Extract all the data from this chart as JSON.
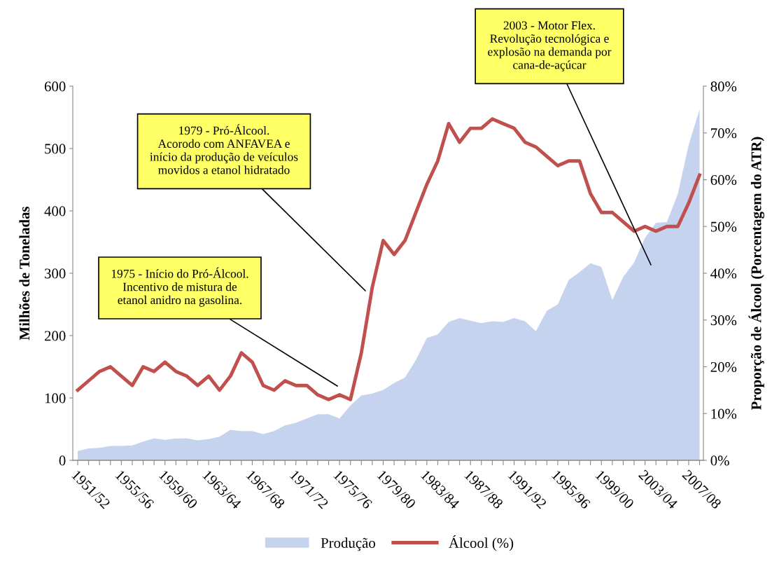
{
  "chart_data": {
    "type": "area",
    "categories": [
      "1951/52",
      null,
      null,
      null,
      "1955/56",
      null,
      null,
      null,
      "1959/60",
      null,
      null,
      null,
      "1963/64",
      null,
      null,
      null,
      "1967/68",
      null,
      null,
      null,
      "1971/72",
      null,
      null,
      null,
      "1975/76",
      null,
      null,
      null,
      "1979/80",
      null,
      null,
      null,
      "1983/84",
      null,
      null,
      null,
      "1987/88",
      null,
      null,
      null,
      "1991/92",
      null,
      null,
      null,
      "1995/96",
      null,
      null,
      null,
      "1999/00",
      null,
      null,
      null,
      "2003/04",
      null,
      null,
      null,
      "2007/08",
      null
    ],
    "series": [
      {
        "name": "Produção",
        "color": "#c5d3ee",
        "values": [
          15,
          19,
          20,
          23,
          23,
          24,
          30,
          35,
          33,
          35,
          35,
          32,
          34,
          38,
          49,
          47,
          47,
          42,
          47,
          56,
          60,
          67,
          74,
          74,
          67,
          88,
          104,
          107,
          113,
          124,
          133,
          161,
          196,
          202,
          222,
          228,
          224,
          220,
          223,
          222,
          228,
          223,
          207,
          240,
          250,
          289,
          302,
          316,
          310,
          257,
          294,
          317,
          357,
          381,
          382,
          427,
          506,
          563
        ]
      },
      {
        "name": "Álcool (%)",
        "type": "line",
        "axis": "y2",
        "color": "#c0504d",
        "values": [
          15,
          17,
          19,
          20,
          18,
          16,
          20,
          19,
          21,
          19,
          18,
          16,
          18,
          15,
          18,
          23,
          21,
          16,
          15,
          17,
          16,
          16,
          14,
          13,
          14,
          13,
          23,
          37,
          47,
          44,
          47,
          53,
          59,
          64,
          72,
          68,
          71,
          71,
          73,
          72,
          71,
          68,
          67,
          65,
          63,
          64,
          64,
          57,
          53,
          53,
          51,
          49,
          50,
          49,
          50,
          50,
          55,
          61
        ]
      }
    ],
    "ylabel": "Milhões de Toneladas",
    "y2label": "Proporção de Álcool (Porcentagem do ATR)",
    "ylim": [
      0,
      600
    ],
    "yticks": [
      0,
      100,
      200,
      300,
      400,
      500,
      600
    ],
    "y2lim": [
      0,
      80
    ],
    "y2ticks": [
      {
        "value": 0,
        "label": "0%"
      },
      {
        "value": 10,
        "label": "10%"
      },
      {
        "value": 20,
        "label": "20%"
      },
      {
        "value": 30,
        "label": "30%"
      },
      {
        "value": 40,
        "label": "40%"
      },
      {
        "value": 50,
        "label": "50%"
      },
      {
        "value": 60,
        "label": "60%"
      },
      {
        "value": 70,
        "label": "70%"
      },
      {
        "value": 80,
        "label": "80%"
      }
    ],
    "annotations": [
      "1975 - Início do Pró-Álcool.\nIncentivo de mistura de\netanol anidro na gasolina.",
      "1979 - Pró-Álcool.\nAcorodo com ANFAVEA e\ninício da produção de veículos\nmovidos a etanol hidratado",
      "2003 - Motor Flex.\nRevolução tecnológica e\nexplosão na demanda por\ncana-de-açúcar"
    ],
    "grid": false,
    "legend": "bottom",
    "marker": "none",
    "line_style": "solid"
  }
}
